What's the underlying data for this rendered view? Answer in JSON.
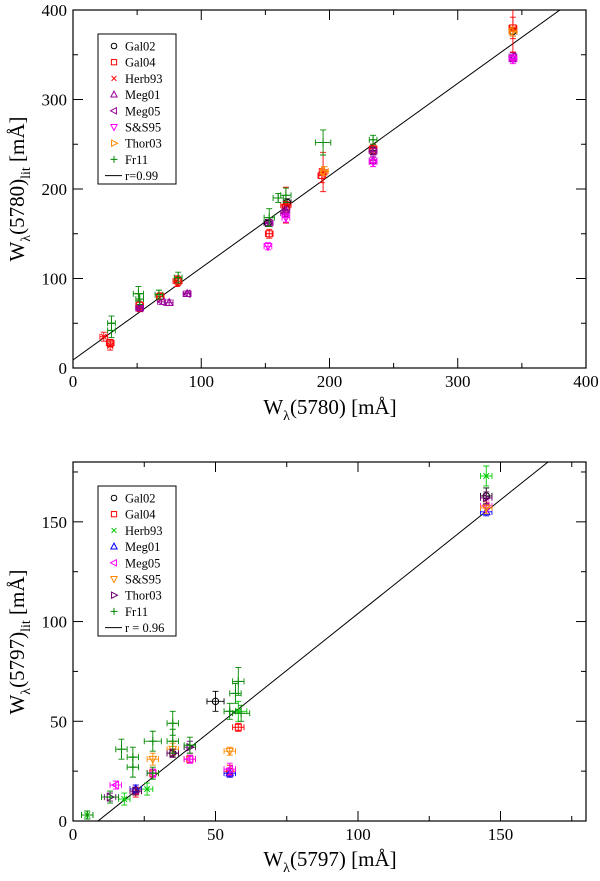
{
  "chart_data": [
    {
      "type": "scatter",
      "id": "top",
      "xlabel_main": "W",
      "xlabel_sub": "λ",
      "xlabel_rest": "(5780) [mÅ]",
      "ylabel_main": "W",
      "ylabel_sub": "λ",
      "ylabel_rest1": "(5780)",
      "ylabel_sub2": "lit",
      "ylabel_rest2": " [mÅ]",
      "xlim": [
        0,
        400
      ],
      "ylim": [
        0,
        400
      ],
      "xticks": [
        0,
        100,
        200,
        300,
        400
      ],
      "yticks": [
        0,
        100,
        200,
        300,
        400
      ],
      "xtick_labels": [
        "0",
        "100",
        "200",
        "300",
        "400"
      ],
      "ytick_labels": [
        "0",
        "100",
        "200",
        "300",
        "400"
      ],
      "fit": {
        "label": "r=0.99",
        "slope": 1.03,
        "intercept": 9
      },
      "series": [
        {
          "name": "Gal02",
          "marker": "circle",
          "color": "#000000",
          "points": [
            [
              152,
              162,
              3,
              4
            ],
            [
              167,
              185,
              3,
              4
            ],
            [
              234,
              243,
              3,
              4
            ],
            [
              343,
              376,
              3,
              5
            ]
          ]
        },
        {
          "name": "Gal04",
          "marker": "square",
          "color": "#ff0000",
          "points": [
            [
              29,
              28,
              3,
              4
            ],
            [
              52,
              70,
              3,
              4
            ],
            [
              68,
              80,
              3,
              4
            ],
            [
              82,
              97,
              3,
              5
            ],
            [
              153,
              150,
              3,
              5
            ],
            [
              166,
              180,
              3,
              6
            ],
            [
              194,
              215,
              3,
              8
            ],
            [
              234,
              245,
              3,
              5
            ],
            [
              343,
              380,
              3,
              12
            ]
          ]
        },
        {
          "name": "Herb93",
          "marker": "x",
          "color": "#ff0000",
          "points": [
            [
              24,
              35,
              3,
              5
            ],
            [
              29,
              25,
              2,
              5
            ],
            [
              52,
              67,
              2,
              4
            ],
            [
              81,
              97,
              3,
              6
            ],
            [
              166,
              182,
              4,
              20
            ],
            [
              195,
              219,
              3,
              22
            ],
            [
              343,
              378,
              3,
              25
            ]
          ]
        },
        {
          "name": "Meg01",
          "marker": "triangle-up",
          "color": "#990099",
          "points": [
            [
              52,
              67,
              3,
              3
            ],
            [
              75,
              73,
              3,
              3
            ],
            [
              89,
              83,
              3,
              3
            ],
            [
              166,
              176,
              3,
              4
            ],
            [
              234,
              232,
              3,
              4
            ],
            [
              343,
              346,
              3,
              4
            ]
          ]
        },
        {
          "name": "Meg05",
          "marker": "triangle-left",
          "color": "#990099",
          "points": [
            [
              52,
              67,
              3,
              3
            ],
            [
              69,
              74,
              3,
              3
            ],
            [
              89,
              83,
              3,
              3
            ],
            [
              153,
              162,
              3,
              4
            ],
            [
              165,
              173,
              3,
              4
            ],
            [
              234,
              242,
              3,
              4
            ],
            [
              343,
              348,
              3,
              4
            ]
          ]
        },
        {
          "name": "S&S95",
          "marker": "triangle-down",
          "color": "#ff00ff",
          "points": [
            [
              152,
              136,
              3,
              4
            ],
            [
              166,
              168,
              3,
              5
            ],
            [
              234,
              230,
              3,
              5
            ],
            [
              343,
              345,
              3,
              5
            ]
          ]
        },
        {
          "name": "Thor03",
          "marker": "triangle-right",
          "color": "#ff8800",
          "points": [
            [
              196,
              220,
              3,
              5
            ],
            [
              343,
              376,
              3,
              5
            ]
          ]
        },
        {
          "name": "Fr11",
          "marker": "plus",
          "color": "#008800",
          "points": [
            [
              30,
              42,
              3,
              8
            ],
            [
              30,
              50,
              3,
              8
            ],
            [
              51,
              83,
              4,
              8
            ],
            [
              52,
              77,
              3,
              6
            ],
            [
              67,
              82,
              3,
              5
            ],
            [
              82,
              101,
              3,
              6
            ],
            [
              153,
              168,
              4,
              10
            ],
            [
              160,
              190,
              4,
              5
            ],
            [
              166,
              193,
              4,
              8
            ],
            [
              195,
              252,
              6,
              14
            ],
            [
              234,
              255,
              3,
              5
            ]
          ]
        }
      ]
    },
    {
      "type": "scatter",
      "id": "bottom",
      "xlabel_main": "W",
      "xlabel_sub": "λ",
      "xlabel_rest": "(5797) [mÅ]",
      "ylabel_main": "W",
      "ylabel_sub": "λ",
      "ylabel_rest1": "(5797)",
      "ylabel_sub2": "lit",
      "ylabel_rest2": " [mÅ]",
      "xlim": [
        0,
        180
      ],
      "ylim": [
        0,
        180
      ],
      "xticks": [
        0,
        50,
        100,
        150
      ],
      "yticks": [
        0,
        50,
        100,
        150
      ],
      "xtick_labels": [
        "0",
        "50",
        "100",
        "150"
      ],
      "ytick_labels": [
        "0",
        "50",
        "100",
        "150"
      ],
      "fit": {
        "label": "r = 0.96",
        "slope": 1.14,
        "intercept": -10
      },
      "series": [
        {
          "name": "Gal02",
          "marker": "circle",
          "color": "#000000",
          "points": [
            [
              35,
              34,
              2,
              2
            ],
            [
              50,
              60,
              3,
              5
            ],
            [
              145,
              163,
              2,
              4
            ]
          ]
        },
        {
          "name": "Gal04",
          "marker": "square",
          "color": "#ff0000",
          "points": [
            [
              22,
              15,
              2,
              3
            ],
            [
              28,
              24,
              2,
              2
            ],
            [
              41,
              31,
              2,
              2
            ],
            [
              55,
              25,
              2,
              3
            ],
            [
              58,
              47,
              2,
              2
            ]
          ]
        },
        {
          "name": "Herb93",
          "marker": "x",
          "color": "#00cc00",
          "points": [
            [
              5,
              3,
              2,
              2
            ],
            [
              18,
              11,
              2,
              3
            ],
            [
              26,
              16,
              2,
              3
            ],
            [
              58,
              55,
              3,
              5
            ],
            [
              145,
              173,
              2,
              5
            ]
          ]
        },
        {
          "name": "Meg01",
          "marker": "triangle-up",
          "color": "#0000ff",
          "points": [
            [
              22,
              16,
              2,
              2
            ],
            [
              55,
              24,
              2,
              2
            ],
            [
              145,
              155,
              2,
              2
            ]
          ]
        },
        {
          "name": "Meg05",
          "marker": "triangle-left",
          "color": "#ff00ff",
          "points": [
            [
              15,
              18,
              2,
              2
            ],
            [
              28,
              24,
              2,
              2
            ],
            [
              41,
              31,
              2,
              2
            ],
            [
              55,
              26,
              2,
              3
            ],
            [
              145,
              158,
              2,
              3
            ]
          ]
        },
        {
          "name": "S&S95",
          "marker": "triangle-down",
          "color": "#ff8800",
          "points": [
            [
              28,
              31,
              2,
              3
            ],
            [
              35,
              36,
              2,
              3
            ],
            [
              55,
              35,
              2,
              2
            ],
            [
              145,
              157,
              2,
              3
            ]
          ]
        },
        {
          "name": "Thor03",
          "marker": "triangle-right",
          "color": "#660066",
          "points": [
            [
              13,
              12,
              2,
              2
            ],
            [
              22,
              15,
              2,
              2
            ],
            [
              35,
              34,
              2,
              2
            ],
            [
              41,
              37,
              2,
              3
            ],
            [
              145,
              162,
              2,
              3
            ]
          ]
        },
        {
          "name": "Fr11",
          "marker": "plus",
          "color": "#008800",
          "points": [
            [
              5,
              3,
              2,
              2
            ],
            [
              13,
              12,
              3,
              3
            ],
            [
              17,
              36,
              2,
              5
            ],
            [
              21,
              27,
              2,
              5
            ],
            [
              21,
              32,
              2,
              5
            ],
            [
              28,
              24,
              2,
              3
            ],
            [
              28,
              40,
              3,
              5
            ],
            [
              35,
              49,
              2,
              6
            ],
            [
              35,
              40,
              2,
              6
            ],
            [
              41,
              38,
              2,
              4
            ],
            [
              55,
              55,
              2,
              4
            ],
            [
              57,
              64,
              2,
              5
            ],
            [
              58,
              70,
              2,
              7
            ],
            [
              59,
              54,
              3,
              4
            ]
          ]
        }
      ]
    }
  ]
}
